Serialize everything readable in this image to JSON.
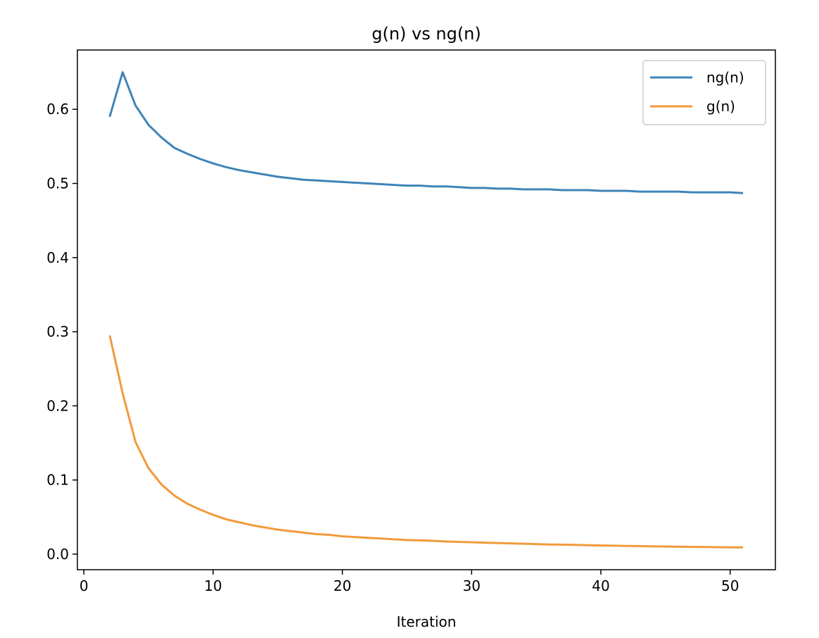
{
  "chart_data": {
    "type": "line",
    "title": "g(n) vs ng(n)",
    "xlabel": "Iteration",
    "ylabel": "",
    "xlim": [
      -0.5,
      53.5
    ],
    "ylim": [
      -0.021,
      0.68
    ],
    "xticks": [
      0,
      10,
      20,
      30,
      40,
      50
    ],
    "yticks": [
      0.0,
      0.1,
      0.2,
      0.3,
      0.4,
      0.5,
      0.6
    ],
    "xtick_labels": [
      "0",
      "10",
      "20",
      "30",
      "40",
      "50"
    ],
    "ytick_labels": [
      "0.0",
      "0.1",
      "0.2",
      "0.3",
      "0.4",
      "0.5",
      "0.6"
    ],
    "grid": false,
    "legend_position": "top-right",
    "x": [
      2,
      3,
      4,
      5,
      6,
      7,
      8,
      9,
      10,
      11,
      12,
      13,
      14,
      15,
      16,
      17,
      18,
      19,
      20,
      21,
      22,
      23,
      24,
      25,
      26,
      27,
      28,
      29,
      30,
      31,
      32,
      33,
      34,
      35,
      36,
      37,
      38,
      39,
      40,
      41,
      42,
      43,
      44,
      45,
      46,
      47,
      48,
      49,
      50,
      51
    ],
    "series": [
      {
        "name": "ng(n)",
        "color": "#3f84b8",
        "values": [
          0.59,
          0.65,
          0.605,
          0.579,
          0.562,
          0.548,
          0.54,
          0.533,
          0.527,
          0.522,
          0.518,
          0.515,
          0.512,
          0.509,
          0.507,
          0.505,
          0.504,
          0.503,
          0.502,
          0.501,
          0.5,
          0.499,
          0.498,
          0.497,
          0.497,
          0.496,
          0.496,
          0.495,
          0.494,
          0.494,
          0.493,
          0.493,
          0.492,
          0.492,
          0.492,
          0.491,
          0.491,
          0.491,
          0.49,
          0.49,
          0.49,
          0.489,
          0.489,
          0.489,
          0.489,
          0.488,
          0.488,
          0.488,
          0.488,
          0.487
        ]
      },
      {
        "name": "g(n)",
        "color": "#f29a3c",
        "values": [
          0.295,
          0.217,
          0.151,
          0.116,
          0.094,
          0.079,
          0.068,
          0.06,
          0.053,
          0.047,
          0.043,
          0.039,
          0.036,
          0.033,
          0.031,
          0.029,
          0.027,
          0.026,
          0.024,
          0.023,
          0.022,
          0.021,
          0.02,
          0.019,
          0.0185,
          0.018,
          0.017,
          0.0165,
          0.016,
          0.0155,
          0.015,
          0.0145,
          0.014,
          0.0135,
          0.013,
          0.0128,
          0.0125,
          0.012,
          0.0117,
          0.0114,
          0.011,
          0.0108,
          0.0105,
          0.0102,
          0.01,
          0.0098,
          0.0096,
          0.0094,
          0.0092,
          0.009
        ]
      }
    ]
  }
}
